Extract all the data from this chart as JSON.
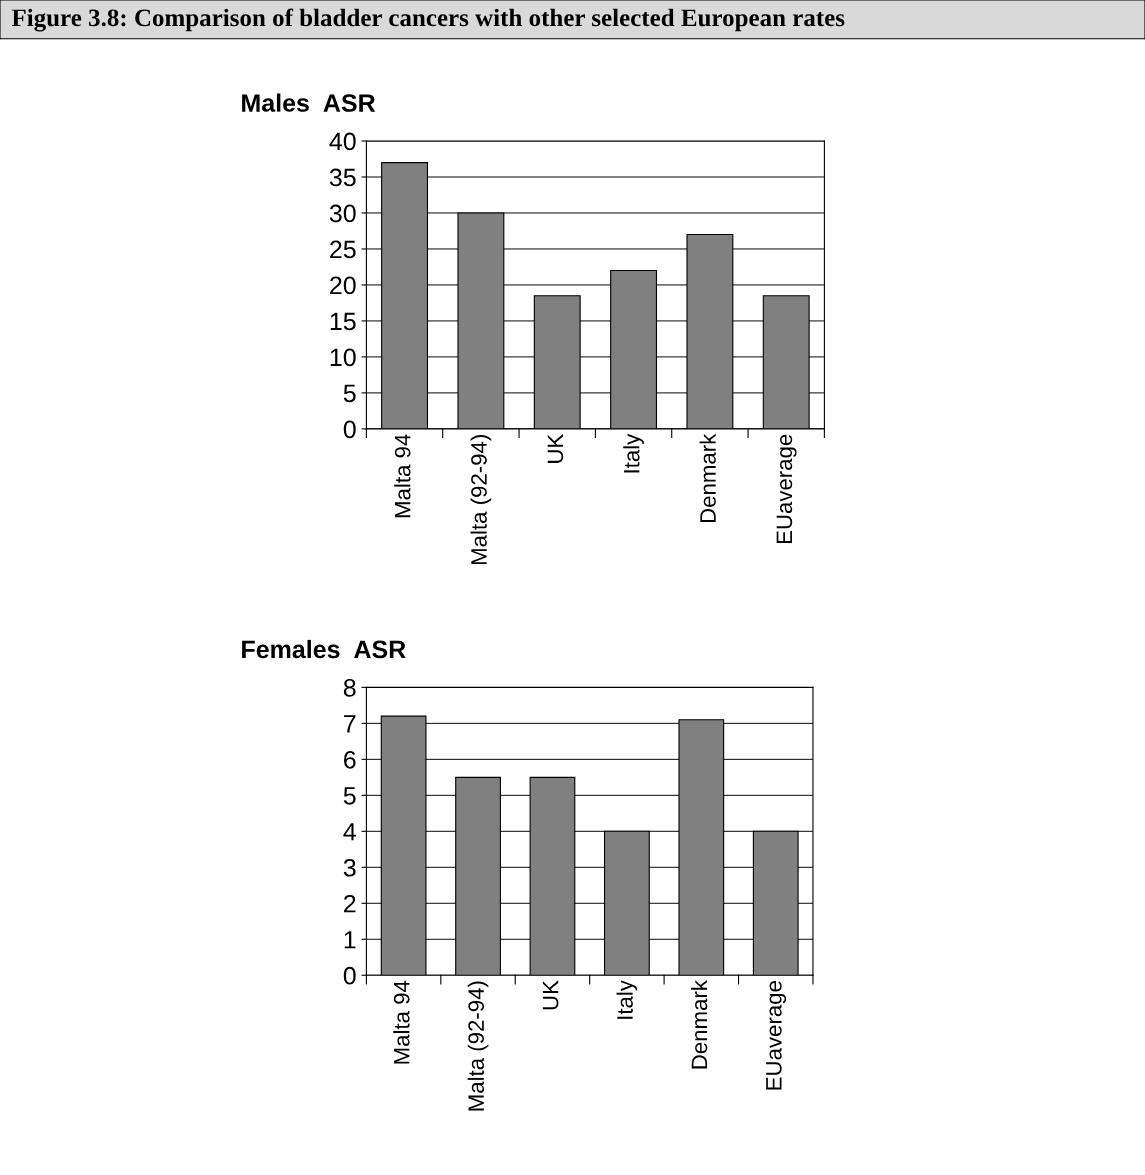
{
  "chart_data": [
    {
      "type": "bar",
      "title": "Figure 3.8: Comparison of bladder cancers with other selected European rates",
      "ylabel": "Males  ASR",
      "categories": [
        "Malta 94",
        "Malta (92-94)",
        "UK",
        "Italy",
        "Denmark",
        "EUaverage"
      ],
      "values": [
        37,
        30,
        18.5,
        22,
        27,
        18.5
      ],
      "color": "#808080",
      "ylim": [
        0,
        40
      ],
      "yticks": [
        0,
        5,
        10,
        15,
        20,
        25,
        30,
        35,
        40
      ],
      "grid": "y"
    },
    {
      "type": "bar",
      "ylabel": "Females  ASR",
      "categories": [
        "Malta 94",
        "Malta (92-94)",
        "UK",
        "Italy",
        "Denmark",
        "EUaverage"
      ],
      "values": [
        7.2,
        5.5,
        5.5,
        4.0,
        7.1,
        4.0
      ],
      "color": "#808080",
      "ylim": [
        0,
        8
      ],
      "yticks": [
        0,
        1,
        2,
        3,
        4,
        5,
        6,
        7,
        8
      ],
      "grid": "y"
    }
  ]
}
